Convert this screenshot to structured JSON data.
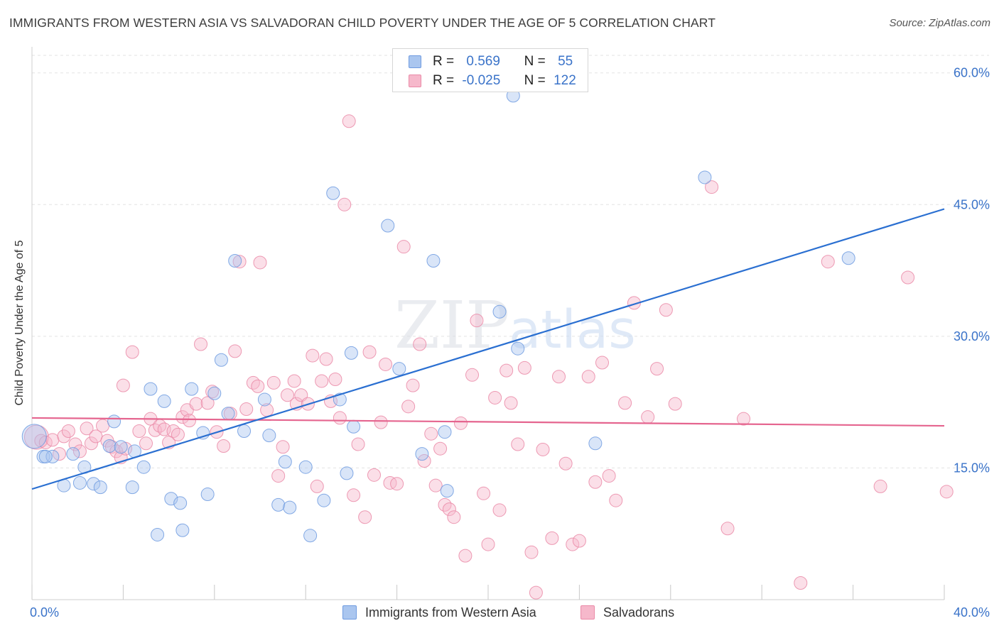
{
  "title": "IMMIGRANTS FROM WESTERN ASIA VS SALVADORAN CHILD POVERTY UNDER THE AGE OF 5 CORRELATION CHART",
  "source": "Source: ZipAtlas.com",
  "watermark": {
    "zip": "ZIP",
    "atlas": "atlas"
  },
  "legend_top": [
    {
      "r_label": "R =",
      "r_value": "0.569",
      "n_label": "N =",
      "n_value": "55"
    },
    {
      "r_label": "R =",
      "r_value": "-0.025",
      "n_label": "N =",
      "n_value": "122"
    }
  ],
  "colors": {
    "blue_fill": "#aac6ef",
    "blue_stroke": "#6f9be0",
    "blue_line": "#2a6fd1",
    "pink_fill": "#f6b8cb",
    "pink_stroke": "#ea8aa7",
    "pink_line": "#e5658f",
    "axis_text": "#3a73c9",
    "grid": "#e3e3e3"
  },
  "chart_data": {
    "type": "scatter",
    "title": "IMMIGRANTS FROM WESTERN ASIA VS SALVADORAN CHILD POVERTY UNDER THE AGE OF 5 CORRELATION CHART",
    "xlabel": "",
    "ylabel": "Child Poverty Under the Age of 5",
    "xlim": [
      0,
      40
    ],
    "ylim": [
      0,
      62
    ],
    "x_tick_labels": [
      "0.0%",
      "40.0%"
    ],
    "y_ticks": [
      15,
      30,
      45,
      60
    ],
    "y_tick_labels": [
      "15.0%",
      "30.0%",
      "45.0%",
      "60.0%"
    ],
    "grid": "horizontal dashed",
    "legend_position": "bottom",
    "series": [
      {
        "name": "Immigrants from Western Asia",
        "R": 0.569,
        "N": 55,
        "trend": {
          "x": [
            0,
            40
          ],
          "y": [
            12.6,
            44.5
          ]
        },
        "points": [
          [
            0.1,
            18.6
          ],
          [
            0.5,
            16.3
          ],
          [
            0.9,
            16.3
          ],
          [
            1.4,
            13.0
          ],
          [
            1.8,
            16.6
          ],
          [
            2.1,
            13.3
          ],
          [
            2.3,
            15.1
          ],
          [
            2.7,
            13.2
          ],
          [
            3.0,
            12.8
          ],
          [
            3.6,
            20.3
          ],
          [
            3.4,
            17.5
          ],
          [
            3.9,
            17.4
          ],
          [
            4.4,
            12.8
          ],
          [
            4.5,
            16.9
          ],
          [
            4.9,
            15.1
          ],
          [
            5.2,
            24.0
          ],
          [
            5.5,
            7.4
          ],
          [
            5.8,
            22.6
          ],
          [
            6.1,
            11.5
          ],
          [
            6.5,
            11.0
          ],
          [
            6.6,
            7.9
          ],
          [
            7.0,
            24.0
          ],
          [
            7.5,
            19.0
          ],
          [
            7.7,
            12.0
          ],
          [
            8.0,
            23.5
          ],
          [
            8.3,
            27.3
          ],
          [
            8.6,
            21.2
          ],
          [
            8.9,
            38.6
          ],
          [
            9.3,
            19.2
          ],
          [
            10.2,
            22.8
          ],
          [
            10.4,
            18.7
          ],
          [
            10.8,
            10.8
          ],
          [
            11.1,
            15.7
          ],
          [
            11.3,
            10.5
          ],
          [
            12.0,
            15.1
          ],
          [
            12.2,
            7.3
          ],
          [
            12.8,
            11.3
          ],
          [
            13.2,
            46.3
          ],
          [
            13.5,
            22.8
          ],
          [
            13.8,
            14.4
          ],
          [
            14.0,
            28.1
          ],
          [
            14.1,
            19.7
          ],
          [
            15.6,
            42.6
          ],
          [
            16.1,
            26.3
          ],
          [
            17.1,
            16.6
          ],
          [
            17.6,
            38.6
          ],
          [
            18.1,
            19.1
          ],
          [
            18.2,
            12.4
          ],
          [
            20.5,
            32.8
          ],
          [
            21.1,
            57.4
          ],
          [
            21.3,
            28.6
          ],
          [
            24.7,
            17.8
          ],
          [
            29.5,
            48.1
          ],
          [
            35.8,
            38.9
          ],
          [
            0.6,
            16.3
          ]
        ]
      },
      {
        "name": "Salvadorans",
        "R": -0.025,
        "N": 122,
        "trend": {
          "x": [
            0,
            40
          ],
          "y": [
            20.7,
            19.8
          ]
        },
        "points": [
          [
            0.2,
            18.5
          ],
          [
            0.4,
            18.1
          ],
          [
            0.6,
            17.9
          ],
          [
            0.9,
            18.2
          ],
          [
            1.2,
            16.6
          ],
          [
            1.4,
            18.6
          ],
          [
            1.6,
            19.2
          ],
          [
            1.9,
            17.7
          ],
          [
            2.1,
            16.9
          ],
          [
            2.4,
            19.5
          ],
          [
            2.6,
            17.8
          ],
          [
            2.8,
            18.6
          ],
          [
            3.1,
            19.8
          ],
          [
            3.3,
            18.1
          ],
          [
            3.5,
            17.4
          ],
          [
            3.7,
            16.9
          ],
          [
            3.9,
            16.2
          ],
          [
            4.1,
            17.2
          ],
          [
            4.0,
            24.4
          ],
          [
            4.4,
            28.2
          ],
          [
            4.7,
            19.2
          ],
          [
            5.0,
            17.8
          ],
          [
            5.2,
            20.6
          ],
          [
            5.4,
            19.3
          ],
          [
            5.6,
            19.8
          ],
          [
            5.8,
            19.4
          ],
          [
            6.0,
            17.9
          ],
          [
            6.2,
            19.2
          ],
          [
            6.4,
            18.8
          ],
          [
            6.6,
            20.8
          ],
          [
            6.8,
            21.6
          ],
          [
            6.9,
            20.4
          ],
          [
            7.2,
            22.3
          ],
          [
            7.4,
            29.1
          ],
          [
            7.7,
            22.4
          ],
          [
            7.9,
            23.7
          ],
          [
            8.1,
            19.1
          ],
          [
            8.4,
            17.5
          ],
          [
            8.7,
            21.2
          ],
          [
            8.9,
            28.3
          ],
          [
            9.1,
            38.5
          ],
          [
            9.4,
            21.7
          ],
          [
            9.7,
            24.7
          ],
          [
            9.9,
            24.3
          ],
          [
            10.0,
            38.4
          ],
          [
            10.3,
            21.6
          ],
          [
            10.6,
            24.7
          ],
          [
            10.8,
            14.1
          ],
          [
            11.0,
            17.4
          ],
          [
            11.2,
            23.3
          ],
          [
            11.5,
            24.9
          ],
          [
            11.6,
            22.3
          ],
          [
            11.8,
            23.3
          ],
          [
            12.1,
            22.3
          ],
          [
            12.3,
            27.8
          ],
          [
            12.5,
            12.9
          ],
          [
            12.7,
            24.9
          ],
          [
            12.9,
            27.4
          ],
          [
            13.1,
            22.6
          ],
          [
            13.3,
            25.1
          ],
          [
            13.5,
            20.7
          ],
          [
            13.7,
            45.0
          ],
          [
            13.9,
            54.5
          ],
          [
            14.1,
            11.9
          ],
          [
            14.3,
            17.7
          ],
          [
            14.6,
            9.4
          ],
          [
            14.8,
            28.2
          ],
          [
            15.0,
            14.2
          ],
          [
            15.3,
            20.2
          ],
          [
            15.5,
            26.8
          ],
          [
            15.7,
            13.3
          ],
          [
            16.0,
            13.2
          ],
          [
            16.3,
            40.2
          ],
          [
            16.5,
            22.0
          ],
          [
            16.7,
            24.4
          ],
          [
            17.0,
            29.1
          ],
          [
            17.2,
            15.8
          ],
          [
            17.5,
            18.9
          ],
          [
            17.7,
            13.0
          ],
          [
            17.9,
            17.2
          ],
          [
            18.1,
            10.8
          ],
          [
            18.3,
            10.3
          ],
          [
            18.5,
            9.4
          ],
          [
            18.8,
            20.1
          ],
          [
            19.0,
            5.0
          ],
          [
            19.3,
            25.6
          ],
          [
            19.5,
            31.8
          ],
          [
            19.8,
            12.1
          ],
          [
            20.0,
            6.3
          ],
          [
            20.3,
            23.0
          ],
          [
            20.5,
            10.2
          ],
          [
            20.8,
            26.1
          ],
          [
            21.0,
            22.4
          ],
          [
            21.3,
            17.7
          ],
          [
            21.6,
            26.4
          ],
          [
            21.9,
            5.4
          ],
          [
            22.1,
            0.8
          ],
          [
            22.4,
            17.1
          ],
          [
            22.8,
            7.0
          ],
          [
            23.1,
            25.4
          ],
          [
            23.4,
            15.5
          ],
          [
            23.7,
            6.3
          ],
          [
            24.0,
            6.7
          ],
          [
            24.4,
            25.4
          ],
          [
            24.7,
            13.4
          ],
          [
            25.0,
            27.0
          ],
          [
            25.3,
            14.1
          ],
          [
            25.6,
            11.3
          ],
          [
            26.0,
            22.4
          ],
          [
            26.4,
            33.8
          ],
          [
            27.0,
            20.8
          ],
          [
            27.4,
            26.3
          ],
          [
            27.8,
            33.0
          ],
          [
            28.2,
            22.3
          ],
          [
            29.8,
            47.0
          ],
          [
            30.5,
            8.1
          ],
          [
            31.2,
            20.6
          ],
          [
            33.7,
            1.9
          ],
          [
            34.9,
            38.5
          ],
          [
            37.2,
            12.9
          ],
          [
            38.4,
            36.7
          ],
          [
            40.1,
            12.3
          ]
        ]
      }
    ]
  }
}
